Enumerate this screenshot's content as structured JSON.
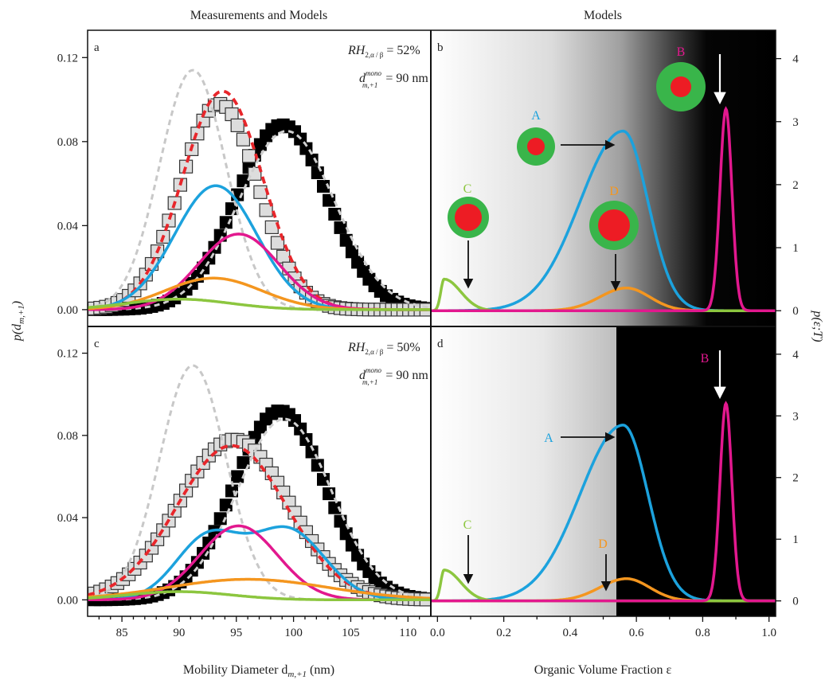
{
  "figure": {
    "title_left": "Measurements and Models",
    "title_right": "Models",
    "ylabel_left": "p(d",
    "ylabel_left_sub": "m,+1",
    "ylabel_right": "p(ε;T)",
    "xlabel_left": "Mobility Diameter d",
    "xlabel_left_sub": "m,+1",
    "xlabel_left_unit": " (nm)",
    "xlabel_right": "Organic Volume Fraction ε"
  },
  "chart_data": [
    {
      "panel": "a",
      "type": "line",
      "annotation_rh": "RH",
      "annotation_rh_sub": "2,α / β",
      "annotation_rh_value": "= 52%",
      "annotation_d": "d",
      "annotation_d_sup": "mono",
      "annotation_d_sub": "m,+1",
      "annotation_d_value": "= 90 nm",
      "xlim": [
        82,
        112
      ],
      "ylim": [
        -0.008,
        0.133
      ],
      "xticks": [
        "85",
        "90",
        "95",
        "100",
        "105",
        "110"
      ],
      "yticks": [
        "0.00",
        "0.04",
        "0.08",
        "0.12"
      ],
      "series": [
        {
          "style": "black-squares",
          "color": "#000000",
          "mean": 99,
          "sd": 4.0,
          "amp": 0.088
        },
        {
          "style": "grey-squares",
          "color": "#dddddd",
          "mean": 93.5,
          "sd": 3.4,
          "amp": 0.098
        },
        {
          "style": "dashed-lightgrey",
          "color": "#c8c8c8",
          "mean": 91.2,
          "sd": 2.9,
          "amp": 0.114
        },
        {
          "style": "dashed-red",
          "color": "#e8262b",
          "mean": 93.8,
          "sd": 3.5,
          "amp": 0.104
        },
        {
          "style": "dashed-grey",
          "color": "#cfcfcf",
          "mean": 99.4,
          "sd": 4.2,
          "amp": 0.085
        },
        {
          "style": "line-blue",
          "color": "#1ca2dd",
          "mean": 93.2,
          "sd": 3.6,
          "amp": 0.059
        },
        {
          "style": "line-magenta",
          "color": "#e2188e",
          "mean": 95.2,
          "sd": 3.5,
          "amp": 0.036
        },
        {
          "style": "line-orange",
          "color": "#f4961f",
          "mean": 93.0,
          "sd": 4.2,
          "amp": 0.015
        },
        {
          "style": "line-green",
          "color": "#8cc63f",
          "mean": 90.0,
          "sd": 4.5,
          "amp": 0.005
        }
      ]
    },
    {
      "panel": "c",
      "type": "line",
      "annotation_rh": "RH",
      "annotation_rh_sub": "2,α / β",
      "annotation_rh_value": "= 50%",
      "annotation_d": "d",
      "annotation_d_sup": "mono",
      "annotation_d_sub": "m,+1",
      "annotation_d_value": "= 90 nm",
      "xlim": [
        82,
        112
      ],
      "ylim": [
        -0.008,
        0.133
      ],
      "xticks": [
        "85",
        "90",
        "95",
        "100",
        "105",
        "110"
      ],
      "yticks": [
        "0.00",
        "0.04",
        "0.08",
        "0.12"
      ],
      "series": [
        {
          "style": "black-squares",
          "color": "#000000",
          "mean": 98.8,
          "sd": 4.0,
          "amp": 0.092
        },
        {
          "style": "grey-squares",
          "color": "#dddddd",
          "mean": 94.8,
          "sd": 4.8,
          "amp": 0.078
        },
        {
          "style": "dashed-lightgrey",
          "color": "#c8c8c8",
          "mean": 91.2,
          "sd": 2.9,
          "amp": 0.114
        },
        {
          "style": "dashed-red",
          "color": "#e8262b",
          "mean": 94.6,
          "sd": 4.8,
          "amp": 0.075
        },
        {
          "style": "dashed-grey",
          "color": "#cfcfcf",
          "mean": 99.2,
          "sd": 4.1,
          "amp": 0.088
        },
        {
          "style": "line-blue-bimodal",
          "color": "#1ca2dd",
          "peaks": [
            [
              92.5,
              2.8,
              0.03
            ],
            [
              99.5,
              3.2,
              0.034
            ]
          ]
        },
        {
          "style": "line-magenta",
          "color": "#e2188e",
          "mean": 95.2,
          "sd": 3.4,
          "amp": 0.036
        },
        {
          "style": "line-orange",
          "color": "#f4961f",
          "mean": 96.0,
          "sd": 7.0,
          "amp": 0.01
        },
        {
          "style": "line-green",
          "color": "#8cc63f",
          "mean": 90.0,
          "sd": 4.5,
          "amp": 0.004
        }
      ]
    },
    {
      "panel": "b",
      "type": "line",
      "xlim": [
        -0.02,
        1.02
      ],
      "ylim": [
        -0.25,
        4.45
      ],
      "yticks": [
        "0",
        "1",
        "2",
        "3",
        "4"
      ],
      "background_shading_center": 0.75,
      "series": [
        {
          "name": "A",
          "color": "#1ca2dd",
          "mean": 0.56,
          "sdl": 0.13,
          "sdr": 0.075,
          "amp": 2.85
        },
        {
          "name": "B",
          "color": "#e2188e",
          "mean": 0.87,
          "sdl": 0.018,
          "sdr": 0.018,
          "amp": 3.2
        },
        {
          "name": "C",
          "color": "#8cc63f",
          "mean": 0.02,
          "sdl": 0.01,
          "sdr": 0.05,
          "amp": 0.5
        },
        {
          "name": "D",
          "color": "#f4961f",
          "mean": 0.57,
          "sdl": 0.08,
          "sdr": 0.07,
          "amp": 0.36
        }
      ]
    },
    {
      "panel": "d",
      "type": "line",
      "xlim": [
        -0.02,
        1.02
      ],
      "ylim": [
        -0.25,
        4.45
      ],
      "xticks": [
        "0.0",
        "0.2",
        "0.4",
        "0.6",
        "0.8",
        "1.0"
      ],
      "yticks": [
        "0",
        "1",
        "2",
        "3",
        "4"
      ],
      "background_shading_edge": 0.54,
      "series": [
        {
          "name": "A",
          "color": "#1ca2dd",
          "mean": 0.56,
          "sdl": 0.13,
          "sdr": 0.075,
          "amp": 2.85
        },
        {
          "name": "B",
          "color": "#e2188e",
          "mean": 0.87,
          "sdl": 0.018,
          "sdr": 0.018,
          "amp": 3.2
        },
        {
          "name": "C",
          "color": "#8cc63f",
          "mean": 0.02,
          "sdl": 0.01,
          "sdr": 0.05,
          "amp": 0.5
        },
        {
          "name": "D",
          "color": "#f4961f",
          "mean": 0.57,
          "sdl": 0.08,
          "sdr": 0.07,
          "amp": 0.36
        }
      ]
    }
  ],
  "labels": {
    "A": "A",
    "B": "B",
    "C": "C",
    "D": "D"
  },
  "colors": {
    "core": "#ed1c24",
    "shell": "#39b54a",
    "A": "#1ca2dd",
    "B": "#e2188e",
    "C": "#8cc63f",
    "D": "#f4961f"
  }
}
